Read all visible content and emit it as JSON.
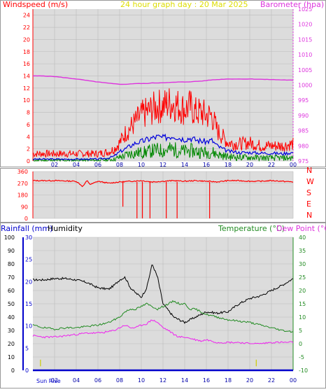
{
  "top_panel": {
    "title": "24 hour graph day : 20 Mar 2025",
    "left_label": "Windspeed (m/s)",
    "right_label": "Barometer (hpa)"
  },
  "bottom_panel": {
    "rain_label": "Rainfall (mm)",
    "humidity_label": "Humidity",
    "temp_label": "Temperature (°C)",
    "dew_label": "Dew Point (°C)",
    "sunrise_label": "Sun Rise"
  },
  "colors": {
    "wind": "#ff0000",
    "gust": "#ff0000",
    "avg_wind": "#0000dd",
    "wind_low": "#008800",
    "barometer": "#dd33dd",
    "direction": "#ff0000",
    "humidity": "#000000",
    "temperature": "#228b22",
    "dewpoint": "#ee22ee",
    "rain": "#0000cc",
    "sun": "#cccc00"
  },
  "chart_data": [
    {
      "type": "line",
      "name": "wind-barometer",
      "x_ticks": [
        "02",
        "04",
        "06",
        "08",
        "10",
        "12",
        "14",
        "16",
        "18",
        "20",
        "22",
        "00"
      ],
      "ylim": [
        0,
        25
      ],
      "y_ticks": [
        "0",
        "2",
        "4",
        "6",
        "8",
        "10",
        "12",
        "14",
        "16",
        "18",
        "20",
        "22",
        "24"
      ],
      "y2lim": [
        975,
        1025
      ],
      "y2_ticks": [
        "975",
        "980",
        "985",
        "990",
        "995",
        "1000",
        "1005",
        "1010",
        "1015",
        "1020",
        "1025"
      ],
      "x": [
        0,
        1,
        2,
        3,
        4,
        5,
        6,
        7,
        7.5,
        8,
        8.5,
        9,
        9.5,
        10,
        10.5,
        11,
        11.5,
        12,
        12.5,
        13,
        13.5,
        14,
        14.5,
        15,
        15.5,
        16,
        16.5,
        17,
        17.5,
        18,
        19,
        20,
        21,
        22,
        23,
        24
      ],
      "series": [
        {
          "values": [
            1.2,
            1.2,
            1.2,
            1.2,
            1.2,
            1.2,
            1.2,
            1.5,
            2.0,
            3.0,
            4.5,
            5.5,
            6.5,
            7.5,
            8,
            8.5,
            9,
            9,
            9.5,
            9.5,
            9,
            8.5,
            9,
            8,
            8,
            7.5,
            7.5,
            5,
            4,
            3,
            2.8,
            3,
            2.5,
            2.5,
            2.5,
            2.8
          ]
        },
        {
          "values": [
            0.3,
            0.3,
            0.3,
            0.3,
            0.3,
            0.3,
            0.3,
            0.5,
            0.8,
            1.5,
            2,
            2.5,
            3,
            3.2,
            3.5,
            3.8,
            4,
            3.8,
            4,
            4.2,
            3.8,
            3.6,
            3.8,
            3.5,
            3.3,
            3.2,
            3.4,
            2.5,
            2,
            1.6,
            1.4,
            1.4,
            1.3,
            1.3,
            1.2,
            1.4
          ]
        },
        {
          "values": [
            0.1,
            0.1,
            0.1,
            0.1,
            0.1,
            0.1,
            0.1,
            0.2,
            0.3,
            0.6,
            0.9,
            1.2,
            1.3,
            1.4,
            1.5,
            1.7,
            1.8,
            1.7,
            1.9,
            1.9,
            1.7,
            1.6,
            1.7,
            1.6,
            1.5,
            1.4,
            1.5,
            1.1,
            0.9,
            0.7,
            0.6,
            0.6,
            0.5,
            0.5,
            0.5,
            0.5
          ]
        },
        {
          "values": [
            1003,
            1003,
            1002.8,
            1002.4,
            1002,
            1001.5,
            1001,
            1000.6,
            1000.4,
            1000.3,
            1000.2,
            1000.4,
            1000.5,
            1000.5,
            1000.5,
            1000.7,
            1000.7,
            1000.8,
            1000.8,
            1000.9,
            1001,
            1001,
            1001.1,
            1001.2,
            1001.3,
            1001.5,
            1001.7,
            1001.8,
            1001.9,
            1002,
            1002,
            1002,
            1001.9,
            1001.8,
            1001.7,
            1001.6
          ]
        }
      ]
    },
    {
      "type": "line",
      "name": "wind-direction",
      "y_ticks": [
        "0",
        "90",
        "180",
        "270",
        "360"
      ],
      "ylim": [
        0,
        360
      ],
      "compass": [
        "N",
        "W",
        "S",
        "E",
        "N"
      ],
      "x": [
        0,
        2,
        4,
        4.3,
        4.6,
        5,
        5.3,
        6,
        7,
        8,
        9,
        10,
        11,
        12,
        13,
        14,
        15,
        16,
        17,
        18,
        19,
        20,
        21,
        22,
        23,
        24
      ],
      "series": [
        {
          "values": [
            290,
            290,
            285,
            265,
            245,
            290,
            260,
            285,
            270,
            280,
            285,
            290,
            280,
            285,
            290,
            285,
            290,
            285,
            280,
            290,
            290,
            285,
            285,
            290,
            285,
            280
          ]
        }
      ],
      "spikes_x": [
        8.3,
        9.6,
        10.1,
        10.8,
        12.3,
        13.3,
        16.3
      ],
      "spikes_y": [
        90,
        0,
        0,
        0,
        0,
        0,
        0
      ]
    },
    {
      "type": "line",
      "name": "humidity-temperature",
      "y_ticks": [
        "0",
        "10",
        "20",
        "30",
        "40",
        "50",
        "60",
        "70",
        "80",
        "90",
        "100"
      ],
      "ylim": [
        0,
        100
      ],
      "rain_ticks": [
        "0",
        "5",
        "10",
        "15",
        "20",
        "25",
        "30"
      ],
      "rain_lim": [
        0,
        30
      ],
      "temp_ticks": [
        "-10",
        "-5",
        "0",
        "5",
        "10",
        "15",
        "20",
        "25",
        "30",
        "35",
        "40"
      ],
      "temp_lim": [
        -10,
        40
      ],
      "x": [
        0,
        1,
        2,
        3,
        4,
        5,
        6,
        7,
        7.5,
        8,
        8.5,
        9,
        9.5,
        10,
        10.5,
        11,
        11.5,
        12,
        12.5,
        13,
        13.5,
        14,
        14.5,
        15,
        15.5,
        16,
        17,
        18,
        19,
        20,
        21,
        22,
        23,
        24
      ],
      "series": [
        {
          "values": [
            68,
            68,
            69,
            69,
            68,
            66,
            62,
            61,
            64,
            68,
            70,
            62,
            58,
            55,
            62,
            80,
            70,
            50,
            45,
            40,
            38,
            36,
            38,
            40,
            42,
            44,
            43,
            44,
            50,
            54,
            56,
            60,
            64,
            69
          ]
        },
        {
          "values": [
            7,
            6,
            5.5,
            6,
            6,
            6.5,
            7,
            8,
            9,
            10,
            12,
            13,
            13,
            14,
            15,
            14,
            13,
            14,
            15,
            16,
            15,
            15,
            13,
            13,
            12,
            11,
            10,
            9,
            8.5,
            8,
            7,
            6,
            5,
            4.5
          ]
        },
        {
          "values": [
            3,
            2.5,
            2.5,
            3,
            3.5,
            4,
            4,
            4.5,
            5,
            6,
            7,
            6,
            6,
            7,
            7.5,
            9,
            8,
            6,
            5,
            3.5,
            2.5,
            2.5,
            2,
            1.5,
            1,
            1.5,
            0.5,
            0.5,
            0.5,
            0,
            0,
            0.5,
            0.5,
            0.5
          ]
        },
        {
          "values": [
            0,
            0,
            0,
            0,
            0,
            0,
            0,
            0,
            0,
            0,
            0,
            0,
            0,
            0,
            0,
            0,
            0,
            0,
            0,
            0,
            0,
            0,
            0,
            0,
            0,
            0,
            0,
            0,
            0,
            0,
            0,
            0,
            0,
            0
          ]
        }
      ],
      "x_ticks": [
        "02",
        "04",
        "06",
        "08",
        "10",
        "12",
        "14",
        "16",
        "18",
        "20",
        "22",
        "00"
      ],
      "sunrise_x": 0.7,
      "sunset_x": 20.6
    }
  ]
}
